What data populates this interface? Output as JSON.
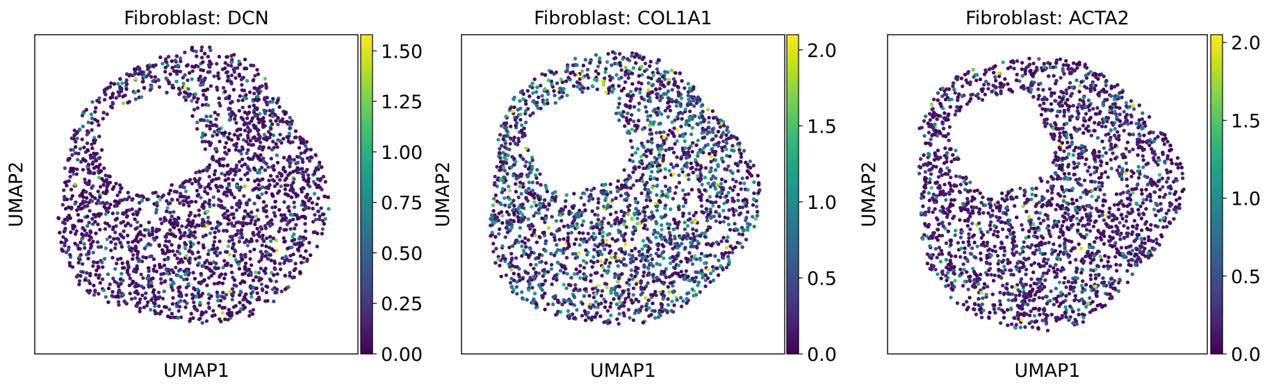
{
  "chart_data": [
    {
      "type": "scatter",
      "title": "Fibroblast: DCN",
      "xlabel": "UMAP1",
      "ylabel": "UMAP2",
      "colorbar": {
        "colormap": "viridis",
        "range": [
          0,
          1.58
        ],
        "ticks": [
          "0.00",
          "0.25",
          "0.50",
          "0.75",
          "1.00",
          "1.25",
          "1.50"
        ]
      },
      "embedding": {
        "shape": "ring",
        "hole": "upper-left of center"
      },
      "expression_profile": {
        "dominant": "low",
        "p_low": 0.84,
        "p_mid": 0.14,
        "p_high": 0.02
      }
    },
    {
      "type": "scatter",
      "title": "Fibroblast: COL1A1",
      "xlabel": "UMAP1",
      "ylabel": "UMAP2",
      "colorbar": {
        "colormap": "viridis",
        "range": [
          0,
          2.1
        ],
        "ticks": [
          "0.0",
          "0.5",
          "1.0",
          "1.5",
          "2.0"
        ]
      },
      "embedding": {
        "shape": "ring",
        "hole": "upper-left of center"
      },
      "expression_profile": {
        "dominant": "low-mid",
        "p_low": 0.55,
        "p_mid": 0.38,
        "p_high": 0.07
      }
    },
    {
      "type": "scatter",
      "title": "Fibroblast: ACTA2",
      "xlabel": "UMAP1",
      "ylabel": "UMAP2",
      "colorbar": {
        "colormap": "viridis",
        "range": [
          0,
          2.05
        ],
        "ticks": [
          "0.0",
          "0.5",
          "1.0",
          "1.5",
          "2.0"
        ]
      },
      "embedding": {
        "shape": "ring",
        "hole": "upper-left of center"
      },
      "expression_profile": {
        "dominant": "low",
        "p_low": 0.78,
        "p_mid": 0.19,
        "p_high": 0.03
      }
    }
  ]
}
